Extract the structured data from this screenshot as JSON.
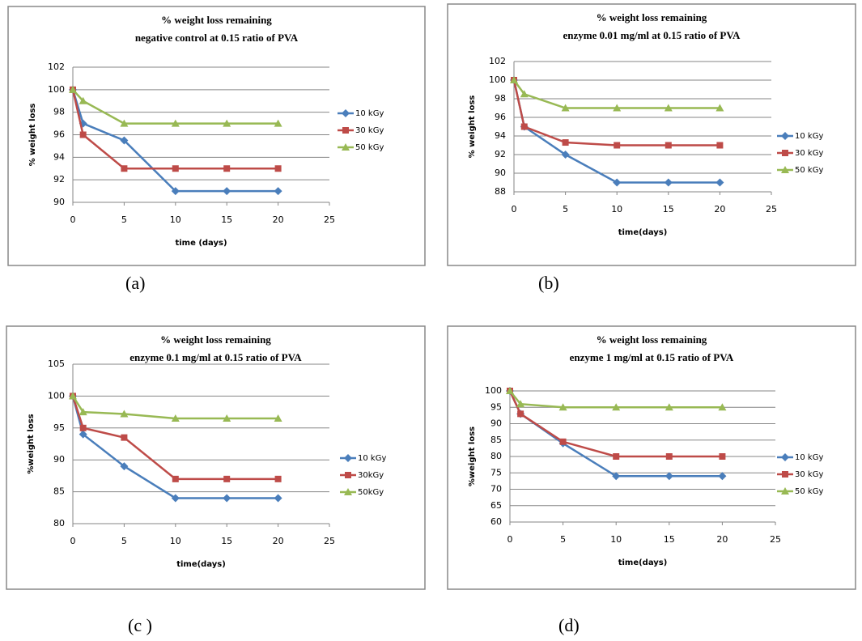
{
  "chart_data": [
    {
      "type": "line",
      "title": "% weight loss  remaining",
      "subtitle": "negative control at 0.15 ratio of  PVA",
      "caption": "(a)",
      "xlabel": "time (days)",
      "ylabel": "% weight loss",
      "x": [
        0,
        1,
        5,
        10,
        15,
        20
      ],
      "series": [
        {
          "name": "10 kGy",
          "color": "#4a7ebb",
          "values": [
            100,
            97,
            95.5,
            91,
            91,
            91
          ]
        },
        {
          "name": "30 kGy",
          "color": "#be4b48",
          "values": [
            100,
            96,
            93,
            93,
            93,
            93
          ]
        },
        {
          "name": "50 kGy",
          "color": "#98b954",
          "values": [
            100,
            99,
            97,
            97,
            97,
            97
          ]
        }
      ],
      "xlim": [
        0,
        25
      ],
      "xticks": [
        0,
        5,
        10,
        15,
        20,
        25
      ],
      "ylim": [
        90,
        102
      ],
      "yticks": [
        90,
        92,
        94,
        96,
        98,
        100,
        102
      ],
      "grid": true
    },
    {
      "type": "line",
      "title": "% weight loss remaining",
      "subtitle": "enzyme 0.01 mg/ml at 0.15 ratio of PVA",
      "caption": "(b)",
      "xlabel": "time(days)",
      "ylabel": "% weight loss",
      "x": [
        0,
        1,
        5,
        10,
        15,
        20
      ],
      "series": [
        {
          "name": "10 kGy",
          "color": "#4a7ebb",
          "values": [
            100,
            95,
            92,
            89,
            89,
            89
          ]
        },
        {
          "name": "30 kGy",
          "color": "#be4b48",
          "values": [
            100,
            95,
            93.3,
            93,
            93,
            93
          ]
        },
        {
          "name": "50 kGy",
          "color": "#98b954",
          "values": [
            100,
            98.5,
            97,
            97,
            97,
            97
          ]
        }
      ],
      "xlim": [
        0,
        25
      ],
      "xticks": [
        0,
        5,
        10,
        15,
        20,
        25
      ],
      "ylim": [
        88,
        102
      ],
      "yticks": [
        88,
        90,
        92,
        94,
        96,
        98,
        100,
        102
      ],
      "grid": true
    },
    {
      "type": "line",
      "title": "% weight loss remaining",
      "subtitle": "enzyme 0.1 mg/ml at 0.15 ratio of PVA",
      "caption": "(c )",
      "xlabel": "time(days)",
      "ylabel": "%weight loss",
      "x": [
        0,
        1,
        5,
        10,
        15,
        20
      ],
      "series": [
        {
          "name": "10 kGy",
          "color": "#4a7ebb",
          "values": [
            100,
            94,
            89,
            84,
            84,
            84
          ]
        },
        {
          "name": "30kGy",
          "color": "#be4b48",
          "values": [
            100,
            95,
            93.5,
            87,
            87,
            87
          ]
        },
        {
          "name": "50kGy",
          "color": "#98b954",
          "values": [
            100,
            97.5,
            97.2,
            96.5,
            96.5,
            96.5
          ]
        }
      ],
      "xlim": [
        0,
        25
      ],
      "xticks": [
        0,
        5,
        10,
        15,
        20,
        25
      ],
      "ylim": [
        80,
        105
      ],
      "yticks": [
        80,
        85,
        90,
        95,
        100,
        105
      ],
      "grid": true
    },
    {
      "type": "line",
      "title": "% weight loss remaining",
      "subtitle": "enzyme 1 mg/ml at 0.15 ratio of PVA",
      "caption": "(d)",
      "xlabel": "time(days)",
      "ylabel": "%weight loss",
      "x": [
        0,
        1,
        5,
        10,
        15,
        20
      ],
      "series": [
        {
          "name": "10 kGy",
          "color": "#4a7ebb",
          "values": [
            100,
            93,
            84,
            74,
            74,
            74
          ]
        },
        {
          "name": "30 kGy",
          "color": "#be4b48",
          "values": [
            100,
            93,
            84.5,
            80,
            80,
            80
          ]
        },
        {
          "name": "50 kGy",
          "color": "#98b954",
          "values": [
            100,
            96,
            95,
            95,
            95,
            95
          ]
        }
      ],
      "xlim": [
        0,
        25
      ],
      "xticks": [
        0,
        5,
        10,
        15,
        20,
        25
      ],
      "ylim": [
        60,
        100
      ],
      "yticks": [
        60,
        65,
        70,
        75,
        80,
        85,
        90,
        95,
        100
      ],
      "grid": true
    }
  ]
}
